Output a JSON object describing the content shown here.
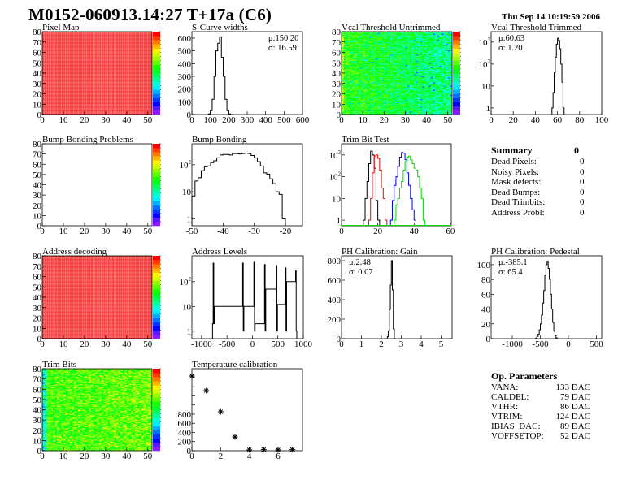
{
  "header": {
    "title": "M0152-060913.14:27 T+17a (C6)",
    "datetime": "Thu Sep 14 10:19:59 2006"
  },
  "colors": {
    "hist_line": "#000000",
    "trim_series": [
      "#000000",
      "#ff0000",
      "#0000ff",
      "#00dd00"
    ],
    "map_full": "#f22020"
  },
  "chart_data": [
    {
      "id": "pixel_map",
      "title": "Pixel Map",
      "type": "heatmap",
      "xlim": [
        0,
        52
      ],
      "ylim": [
        0,
        80
      ],
      "xticks": [
        0,
        10,
        20,
        30,
        40,
        50
      ],
      "yticks": [
        0,
        10,
        20,
        30,
        40,
        50,
        60,
        70,
        80
      ],
      "zlim": [
        0,
        10
      ],
      "z_uniform": 10
    },
    {
      "id": "s_curve",
      "title": "S-Curve widths",
      "type": "histogram",
      "xlim": [
        0,
        600
      ],
      "ylim": [
        0,
        651
      ],
      "xticks": [
        0,
        100,
        200,
        300,
        400,
        500,
        600
      ],
      "yticks": [
        0,
        100,
        200,
        300,
        400,
        500,
        600
      ],
      "stats": {
        "mean": "μ:150.20",
        "sigma": "σ: 16.59"
      },
      "stats_pos": "top-right",
      "series": [
        {
          "bin_width": 10,
          "bins": [
            [
              80,
              0
            ],
            [
              90,
              5
            ],
            [
              100,
              30
            ],
            [
              110,
              120
            ],
            [
              120,
              300
            ],
            [
              130,
              500
            ],
            [
              140,
              560
            ],
            [
              150,
              610
            ],
            [
              160,
              450
            ],
            [
              170,
              300
            ],
            [
              180,
              120
            ],
            [
              190,
              30
            ],
            [
              200,
              5
            ],
            [
              210,
              0
            ]
          ]
        }
      ]
    },
    {
      "id": "vcal_untrimmed",
      "title": "Vcal Threshold Untrimmed",
      "type": "heatmap",
      "xlim": [
        0,
        52
      ],
      "ylim": [
        0,
        80
      ],
      "xticks": [
        0,
        10,
        20,
        30,
        40,
        50
      ],
      "yticks": [
        0,
        10,
        20,
        30,
        40,
        50,
        60,
        70,
        80
      ],
      "zlim": [
        95,
        135
      ]
    },
    {
      "id": "vcal_trimmed",
      "title": "Vcal Threshold Trimmed",
      "type": "histogram",
      "ylog": true,
      "xlim": [
        0,
        100
      ],
      "ylim": [
        0.5,
        3000
      ],
      "xticks": [
        0,
        20,
        40,
        60,
        80,
        100
      ],
      "yticks": [
        1,
        10,
        100,
        1000
      ],
      "stats": {
        "mean": "μ:60.63",
        "sigma": "σ: 1.20"
      },
      "stats_pos": "top-left",
      "series": [
        {
          "bin_width": 1,
          "bins": [
            [
              55,
              1
            ],
            [
              56,
              5
            ],
            [
              57,
              40
            ],
            [
              58,
              200
            ],
            [
              59,
              800
            ],
            [
              60,
              1500
            ],
            [
              61,
              1200
            ],
            [
              62,
              500
            ],
            [
              63,
              100
            ],
            [
              64,
              15
            ],
            [
              65,
              1
            ]
          ]
        }
      ]
    },
    {
      "id": "bb_problems",
      "title": "Bump Bonding Problems",
      "type": "heatmap",
      "xlim": [
        0,
        52
      ],
      "ylim": [
        0,
        80
      ],
      "xticks": [
        0,
        10,
        20,
        30,
        40,
        50
      ],
      "yticks": [
        0,
        10,
        20,
        30,
        40,
        50,
        60,
        70,
        80
      ],
      "z_empty": true
    },
    {
      "id": "bump_bonding",
      "title": "Bump Bonding",
      "type": "histogram",
      "ylog": true,
      "xlim": [
        -50,
        -14.5
      ],
      "ylim": [
        0.55,
        600
      ],
      "xticks": [
        -50,
        -40,
        -30,
        -20
      ],
      "yticks": [
        1,
        10,
        100
      ],
      "series": [
        {
          "bin_width": 1,
          "bins": [
            [
              -50,
              7
            ],
            [
              -49,
              25
            ],
            [
              -48,
              33
            ],
            [
              -47,
              60
            ],
            [
              -46,
              85
            ],
            [
              -45,
              90
            ],
            [
              -44,
              120
            ],
            [
              -43,
              140
            ],
            [
              -42,
              180
            ],
            [
              -41,
              230
            ],
            [
              -40,
              240
            ],
            [
              -39,
              240
            ],
            [
              -38,
              230
            ],
            [
              -37,
              260
            ],
            [
              -36,
              260
            ],
            [
              -35,
              250
            ],
            [
              -34,
              260
            ],
            [
              -33,
              270
            ],
            [
              -32,
              260
            ],
            [
              -31,
              220
            ],
            [
              -30,
              180
            ],
            [
              -29,
              130
            ],
            [
              -28,
              90
            ],
            [
              -27,
              50
            ],
            [
              -26,
              45
            ],
            [
              -25,
              30
            ],
            [
              -24,
              20
            ],
            [
              -23,
              10
            ],
            [
              -22,
              8
            ],
            [
              -21,
              1
            ]
          ]
        }
      ]
    },
    {
      "id": "trim_bit_test",
      "title": "Trim Bit Test",
      "type": "histogram",
      "ylog": true,
      "xlim": [
        0,
        60.5
      ],
      "ylim": [
        0.55,
        3300
      ],
      "xticks": [
        0,
        20,
        40,
        60
      ],
      "yticks": [
        1,
        10,
        100,
        1000
      ],
      "series": [
        {
          "bin_width": 1,
          "bins": [
            [
              12,
              1
            ],
            [
              13,
              10
            ],
            [
              14,
              60
            ],
            [
              15,
              400
            ],
            [
              16,
              1500
            ],
            [
              17,
              1000
            ],
            [
              18,
              250
            ],
            [
              19,
              8
            ],
            [
              20,
              1
            ]
          ]
        },
        {
          "bin_width": 1,
          "bins": [
            [
              15,
              1
            ],
            [
              16,
              10
            ],
            [
              17,
              150
            ],
            [
              18,
              900
            ],
            [
              19,
              1000
            ],
            [
              20,
              700
            ],
            [
              21,
              200
            ],
            [
              22,
              30
            ],
            [
              23,
              10
            ],
            [
              24,
              1
            ]
          ]
        },
        {
          "bin_width": 1,
          "bins": [
            [
              27,
              1
            ],
            [
              28,
              8
            ],
            [
              29,
              40
            ],
            [
              30,
              100
            ],
            [
              31,
              300
            ],
            [
              32,
              800
            ],
            [
              33,
              1300
            ],
            [
              34,
              1200
            ],
            [
              35,
              600
            ],
            [
              36,
              150
            ],
            [
              37,
              40
            ],
            [
              38,
              10
            ],
            [
              39,
              3
            ],
            [
              40,
              1
            ]
          ]
        },
        {
          "bin_width": 1,
          "bins": [
            [
              29,
              1
            ],
            [
              30,
              5
            ],
            [
              31,
              10
            ],
            [
              32,
              30
            ],
            [
              33,
              60
            ],
            [
              34,
              200
            ],
            [
              35,
              500
            ],
            [
              36,
              800
            ],
            [
              37,
              900
            ],
            [
              38,
              600
            ],
            [
              39,
              400
            ],
            [
              40,
              250
            ],
            [
              41,
              200
            ],
            [
              42,
              100
            ],
            [
              43,
              30
            ],
            [
              44,
              10
            ],
            [
              45,
              1
            ]
          ]
        }
      ]
    },
    {
      "id": "address_decoding",
      "title": "Address decoding",
      "type": "heatmap",
      "xlim": [
        0,
        52
      ],
      "ylim": [
        0,
        80
      ],
      "xticks": [
        0,
        10,
        20,
        30,
        40,
        50
      ],
      "yticks": [
        0,
        10,
        20,
        30,
        40,
        50,
        60,
        70,
        80
      ],
      "zlim": [
        0,
        1
      ],
      "z_uniform": 1
    },
    {
      "id": "address_levels",
      "title": "Address Levels",
      "type": "histogram",
      "ylog": true,
      "xlim": [
        -1190,
        1000
      ],
      "ylim": [
        0.5,
        1100
      ],
      "xticks": [
        -1000,
        -500,
        0,
        500,
        1000
      ],
      "yticks": [
        1,
        10,
        100
      ],
      "series": [
        {
          "bin_width": 12,
          "bins": [
            [
              -784,
              2
            ],
            [
              -772,
              560
            ],
            [
              -760,
              2
            ],
            [
              -204,
              10
            ],
            [
              -192,
              560
            ],
            [
              -180,
              1
            ],
            [
              16,
              10
            ],
            [
              28,
              600
            ],
            [
              40,
              1
            ],
            [
              226,
              2
            ],
            [
              238,
              490
            ],
            [
              250,
              1
            ],
            [
              456,
              50
            ],
            [
              468,
              450
            ],
            [
              480,
              1
            ],
            [
              636,
              12
            ],
            [
              648,
              360
            ],
            [
              660,
              1
            ],
            [
              836,
              100
            ],
            [
              848,
              270
            ],
            [
              860,
              1
            ]
          ]
        }
      ]
    },
    {
      "id": "ph_gain",
      "title": "PH Calibration: Gain",
      "type": "histogram",
      "xlim": [
        0,
        5.55
      ],
      "ylim": [
        0,
        850
      ],
      "xticks": [
        0,
        1,
        2,
        3,
        4,
        5
      ],
      "yticks": [
        0,
        200,
        400,
        600,
        800
      ],
      "stats": {
        "mean": "μ:2.48",
        "sigma": "σ: 0.07"
      },
      "stats_pos": "top-left",
      "series": [
        {
          "bin_width": 0.05,
          "bins": [
            [
              2.3,
              20
            ],
            [
              2.35,
              80
            ],
            [
              2.4,
              300
            ],
            [
              2.45,
              550
            ],
            [
              2.5,
              800
            ],
            [
              2.55,
              500
            ],
            [
              2.6,
              100
            ],
            [
              2.65,
              0
            ]
          ]
        }
      ]
    },
    {
      "id": "ph_pedestal",
      "title": "PH Calibration: Pedestal",
      "type": "histogram",
      "xlim": [
        -1377,
        594
      ],
      "ylim": [
        0,
        112
      ],
      "xticks": [
        -1000,
        -500,
        0,
        500
      ],
      "yticks": [
        0,
        20,
        40,
        60,
        80,
        100
      ],
      "stats": {
        "mean": "μ:-385.1",
        "sigma": "σ: 65.4"
      },
      "stats_pos": "top-left",
      "series": [
        {
          "bin_width": 20,
          "bins": [
            [
              -580,
              1
            ],
            [
              -560,
              3
            ],
            [
              -540,
              6
            ],
            [
              -520,
              12
            ],
            [
              -500,
              20
            ],
            [
              -480,
              32
            ],
            [
              -460,
              48
            ],
            [
              -440,
              65
            ],
            [
              -420,
              85
            ],
            [
              -400,
              100
            ],
            [
              -380,
              105
            ],
            [
              -360,
              95
            ],
            [
              -340,
              80
            ],
            [
              -320,
              60
            ],
            [
              -300,
              40
            ],
            [
              -280,
              22
            ],
            [
              -260,
              10
            ],
            [
              -240,
              4
            ],
            [
              -220,
              1
            ]
          ]
        }
      ]
    },
    {
      "id": "trim_bits",
      "title": "Trim Bits",
      "type": "heatmap",
      "xlim": [
        0,
        52
      ],
      "ylim": [
        0,
        80
      ],
      "xticks": [
        0,
        10,
        20,
        30,
        40,
        50
      ],
      "yticks": [
        0,
        10,
        20,
        30,
        40,
        50,
        60,
        70,
        80
      ],
      "zlim": [
        0,
        16
      ]
    },
    {
      "id": "temperature",
      "title": "Temperature calibration",
      "type": "scatter",
      "xlim": [
        0,
        7.7
      ],
      "ylim": [
        0,
        1795
      ],
      "xticks": [
        0,
        2,
        4,
        6
      ],
      "yticks": [
        0,
        200,
        400,
        600,
        800
      ],
      "yminor": [
        1000,
        1200,
        1400,
        1600
      ],
      "points": [
        [
          0,
          1635
        ],
        [
          1,
          1315
        ],
        [
          2,
          853
        ],
        [
          3,
          302
        ],
        [
          4,
          20
        ],
        [
          5,
          25
        ],
        [
          6,
          20
        ],
        [
          7,
          25
        ]
      ]
    }
  ],
  "summary": {
    "title": "Summary",
    "total": "0",
    "items": [
      {
        "label": "Dead Pixels:",
        "value": "0"
      },
      {
        "label": "Noisy Pixels:",
        "value": "0"
      },
      {
        "label": "Mask defects:",
        "value": "0"
      },
      {
        "label": "Dead Bumps:",
        "value": "0"
      },
      {
        "label": "Dead Trimbits:",
        "value": "0"
      },
      {
        "label": "Address Probl:",
        "value": "0"
      }
    ]
  },
  "op_parameters": {
    "title": "Op. Parameters",
    "items": [
      {
        "label": "VANA:",
        "value": "133 DAC"
      },
      {
        "label": "CALDEL:",
        "value": "79 DAC"
      },
      {
        "label": "VTHR:",
        "value": "86 DAC"
      },
      {
        "label": "VTRIM:",
        "value": "124 DAC"
      },
      {
        "label": "IBIAS_DAC:",
        "value": "89 DAC"
      },
      {
        "label": "VOFFSETOP:",
        "value": "52 DAC"
      }
    ]
  }
}
